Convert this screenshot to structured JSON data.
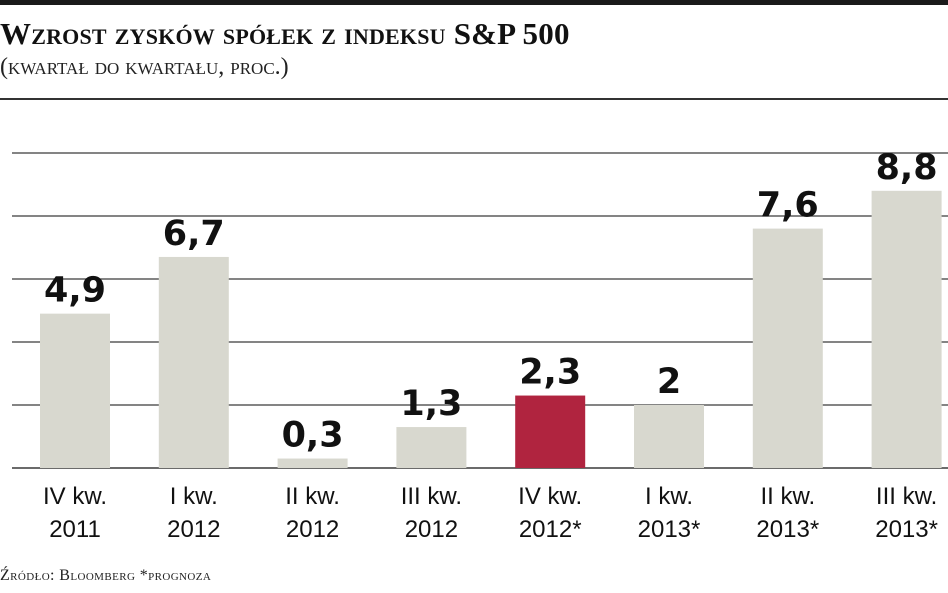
{
  "chart_data": {
    "type": "bar",
    "title": "Wzrost zysków spółek z indeksu S&P 500",
    "subtitle": "(kwartał do kwartału, proc.)",
    "categories": [
      [
        "IV kw.",
        "2011"
      ],
      [
        "I kw.",
        "2012"
      ],
      [
        "II kw.",
        "2012"
      ],
      [
        "III kw.",
        "2012"
      ],
      [
        "IV kw.",
        "2012*"
      ],
      [
        "I kw.",
        "2013*"
      ],
      [
        "II kw.",
        "2013*"
      ],
      [
        "III kw.",
        "2013*"
      ]
    ],
    "values": [
      4.9,
      6.7,
      0.3,
      1.3,
      2.3,
      2.0,
      7.6,
      8.8
    ],
    "value_labels": [
      "4,9",
      "6,7",
      "0,3",
      "1,3",
      "2,3",
      "2",
      "7,6",
      "8,8"
    ],
    "highlight_index": 4,
    "ylim": [
      0,
      10
    ],
    "gridline_step": 2,
    "grid": true,
    "legend": "none",
    "colors": {
      "bar": "#d8d8cf",
      "highlight": "#b0243f",
      "grid": "#3a3a3a"
    },
    "source": "Źródło: Bloomberg *prognoza"
  }
}
